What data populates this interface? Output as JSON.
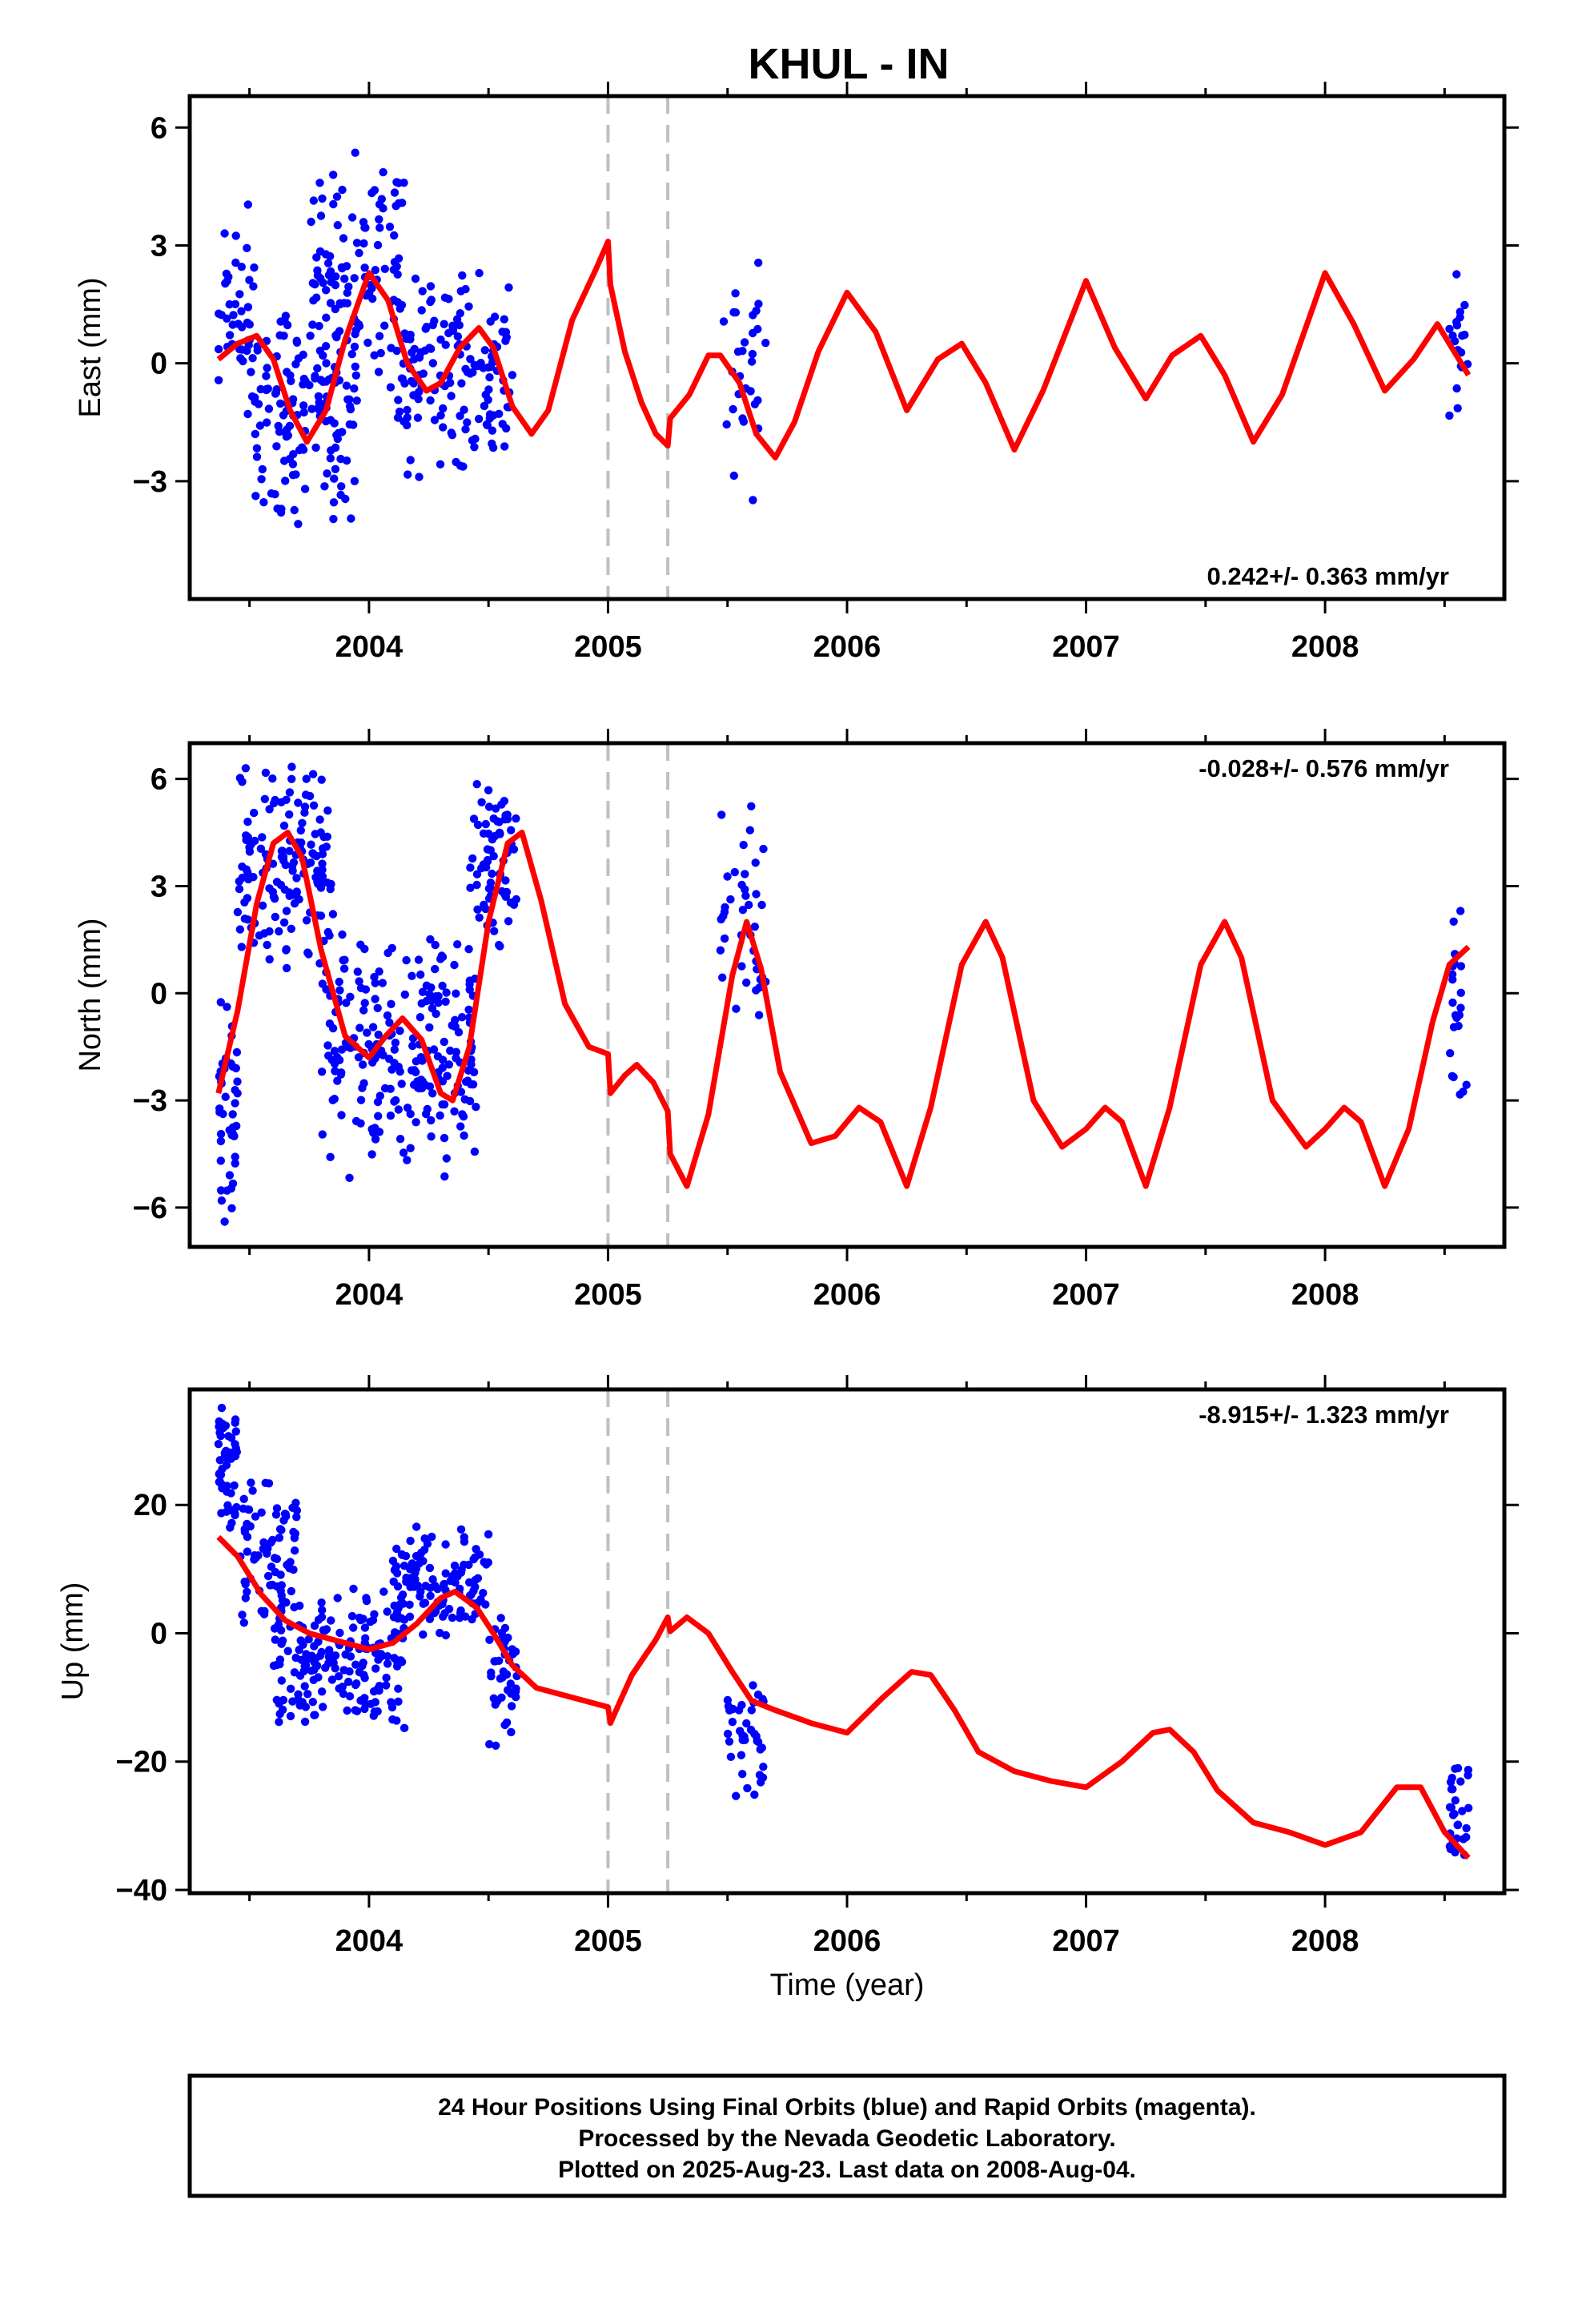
{
  "title": "KHUL - IN",
  "xlabel": "Time (year)",
  "footer": {
    "line1": "24 Hour Positions Using Final Orbits (blue) and Rapid Orbits (magenta).",
    "line2": "Processed by the Nevada Geodetic Laboratory.",
    "line3": "Plotted on 2025-Aug-23. Last data on 2008-Aug-04."
  },
  "colors": {
    "data_points": "#0000ff",
    "model_curve": "#ff0000",
    "break_lines": "#c0c0c0",
    "frame": "#000000"
  },
  "chart_data": [
    {
      "type": "scatter",
      "panel": "east",
      "ylabel": "East (mm)",
      "rate_text": "0.242+/- 0.363 mm/yr",
      "xlim": [
        2003.25,
        2008.75
      ],
      "ylim": [
        -6,
        6.8
      ],
      "yticks": [
        6,
        3,
        0,
        -3
      ],
      "xticks": [
        2004,
        2005,
        2006,
        2007,
        2008
      ],
      "break_lines_x": [
        2005.0,
        2005.25
      ],
      "model": {
        "x": [
          2003.37,
          2003.45,
          2003.53,
          2003.6,
          2003.67,
          2003.74,
          2003.82,
          2003.9,
          2004.0,
          2004.08,
          2004.16,
          2004.24,
          2004.3,
          2004.38,
          2004.46,
          2004.52,
          2004.6,
          2004.68,
          2004.75,
          2004.85,
          2004.95,
          2005.0,
          2005.01,
          2005.07,
          2005.14,
          2005.2,
          2005.25,
          2005.26,
          2005.34,
          2005.42,
          2005.47,
          2005.55,
          2005.62,
          2005.7,
          2005.78,
          2005.88,
          2006.0,
          2006.12,
          2006.25,
          2006.38,
          2006.48,
          2006.58,
          2006.7,
          2006.82,
          2007.0,
          2007.12,
          2007.25,
          2007.36,
          2007.48,
          2007.58,
          2007.7,
          2007.82,
          2008.0,
          2008.12,
          2008.25,
          2008.37,
          2008.47,
          2008.52,
          2008.6
        ],
        "y": [
          0.1,
          0.5,
          0.7,
          0.1,
          -1.2,
          -2.0,
          -1.2,
          0.6,
          2.3,
          1.6,
          0.0,
          -0.7,
          -0.5,
          0.4,
          0.9,
          0.4,
          -1.1,
          -1.8,
          -1.2,
          1.1,
          2.4,
          3.1,
          2.0,
          0.3,
          -1.0,
          -1.8,
          -2.1,
          -1.4,
          -0.8,
          0.2,
          0.2,
          -0.5,
          -1.8,
          -2.4,
          -1.5,
          0.3,
          1.8,
          0.8,
          -1.2,
          0.1,
          0.5,
          -0.5,
          -2.2,
          -0.7,
          2.1,
          0.4,
          -0.9,
          0.2,
          0.7,
          -0.3,
          -2.0,
          -0.8,
          2.3,
          1.0,
          -0.7,
          0.1,
          1.0,
          0.5,
          -0.3
        ]
      },
      "clusters": [
        {
          "x0": 2003.37,
          "x1": 2003.52,
          "n": 45,
          "y0": -2.5,
          "y1": 4.8
        },
        {
          "x0": 2003.52,
          "x1": 2003.95,
          "n": 150,
          "y0": -4.5,
          "y1": 2.2
        },
        {
          "x0": 2003.75,
          "x1": 2004.15,
          "n": 110,
          "y0": -0.8,
          "y1": 5.5
        },
        {
          "x0": 2004.12,
          "x1": 2004.6,
          "n": 150,
          "y0": -3.2,
          "y1": 2.8
        },
        {
          "x0": 2005.48,
          "x1": 2005.66,
          "n": 30,
          "y0": -4.0,
          "y1": 2.9
        },
        {
          "x0": 2008.52,
          "x1": 2008.6,
          "n": 20,
          "y0": -1.8,
          "y1": 3.0
        }
      ]
    },
    {
      "type": "scatter",
      "panel": "north",
      "ylabel": "North (mm)",
      "rate_text": "-0.028+/- 0.576 mm/yr",
      "xlim": [
        2003.25,
        2008.75
      ],
      "ylim": [
        -7.1,
        7.0
      ],
      "yticks": [
        6,
        3,
        0,
        -3,
        -6
      ],
      "xticks": [
        2004,
        2005,
        2006,
        2007,
        2008
      ],
      "break_lines_x": [
        2005.0,
        2005.25
      ],
      "model": {
        "x": [
          2003.37,
          2003.45,
          2003.53,
          2003.6,
          2003.66,
          2003.72,
          2003.8,
          2003.9,
          2004.0,
          2004.07,
          2004.14,
          2004.22,
          2004.3,
          2004.35,
          2004.42,
          2004.5,
          2004.58,
          2004.64,
          2004.72,
          2004.82,
          2004.92,
          2005.0,
          2005.01,
          2005.07,
          2005.12,
          2005.19,
          2005.25,
          2005.26,
          2005.33,
          2005.42,
          2005.52,
          2005.58,
          2005.64,
          2005.72,
          2005.85,
          2005.95,
          2006.05,
          2006.14,
          2006.25,
          2006.35,
          2006.48,
          2006.58,
          2006.65,
          2006.78,
          2006.9,
          2007.0,
          2007.08,
          2007.15,
          2007.25,
          2007.35,
          2007.48,
          2007.58,
          2007.65,
          2007.78,
          2007.92,
          2008.0,
          2008.08,
          2008.15,
          2008.25,
          2008.35,
          2008.45,
          2008.52,
          2008.6
        ],
        "y": [
          -2.8,
          -0.5,
          2.5,
          4.2,
          4.5,
          3.8,
          1.2,
          -1.2,
          -1.8,
          -1.2,
          -0.7,
          -1.3,
          -2.8,
          -3.0,
          -1.5,
          2.0,
          4.2,
          4.5,
          2.6,
          -0.3,
          -1.5,
          -1.7,
          -2.8,
          -2.3,
          -2.0,
          -2.5,
          -3.3,
          -4.5,
          -5.4,
          -3.4,
          0.5,
          2.0,
          0.7,
          -2.2,
          -4.2,
          -4.0,
          -3.2,
          -3.6,
          -5.4,
          -3.2,
          0.8,
          2.0,
          1.0,
          -3.0,
          -4.3,
          -3.8,
          -3.2,
          -3.6,
          -5.4,
          -3.2,
          0.8,
          2.0,
          1.0,
          -3.0,
          -4.3,
          -3.8,
          -3.2,
          -3.6,
          -5.4,
          -3.8,
          -0.8,
          0.8,
          1.3
        ]
      },
      "clusters": [
        {
          "x0": 2003.37,
          "x1": 2003.45,
          "n": 45,
          "y0": -6.8,
          "y1": 0.5
        },
        {
          "x0": 2003.45,
          "x1": 2003.85,
          "n": 150,
          "y0": 0.5,
          "y1": 6.8
        },
        {
          "x0": 2003.8,
          "x1": 2004.45,
          "n": 230,
          "y0": -5.4,
          "y1": 1.8
        },
        {
          "x0": 2004.42,
          "x1": 2004.62,
          "n": 70,
          "y0": 1.0,
          "y1": 6.6
        },
        {
          "x0": 2005.47,
          "x1": 2005.66,
          "n": 40,
          "y0": -1.2,
          "y1": 5.8
        },
        {
          "x0": 2008.52,
          "x1": 2008.6,
          "n": 22,
          "y0": -4.2,
          "y1": 2.9
        }
      ]
    },
    {
      "type": "scatter",
      "panel": "up",
      "ylabel": "Up (mm)",
      "rate_text": "-8.915+/- 1.323 mm/yr",
      "xlim": [
        2003.25,
        2008.75
      ],
      "ylim": [
        -40.5,
        38
      ],
      "yticks": [
        20,
        0,
        -20,
        -40
      ],
      "xticks": [
        2004,
        2005,
        2006,
        2007,
        2008
      ],
      "break_lines_x": [
        2005.0,
        2005.25
      ],
      "model": {
        "x": [
          2003.37,
          2003.45,
          2003.55,
          2003.65,
          2003.75,
          2003.85,
          2004.0,
          2004.1,
          2004.2,
          2004.3,
          2004.36,
          2004.45,
          2004.52,
          2004.6,
          2004.7,
          2004.85,
          2005.0,
          2005.01,
          2005.1,
          2005.2,
          2005.25,
          2005.26,
          2005.33,
          2005.42,
          2005.52,
          2005.6,
          2005.7,
          2005.85,
          2006.0,
          2006.15,
          2006.27,
          2006.35,
          2006.45,
          2006.55,
          2006.7,
          2006.85,
          2007.0,
          2007.15,
          2007.28,
          2007.35,
          2007.45,
          2007.55,
          2007.7,
          2007.85,
          2008.0,
          2008.15,
          2008.3,
          2008.4,
          2008.5,
          2008.6
        ],
        "y": [
          15,
          12,
          6,
          2,
          0,
          -1,
          -2.5,
          -1.5,
          1.5,
          5.5,
          6.5,
          4,
          0,
          -5,
          -8.5,
          -10,
          -11.5,
          -14,
          -6.5,
          -1,
          2.5,
          0.3,
          2.5,
          0,
          -6,
          -10.5,
          -12,
          -14,
          -15.5,
          -10,
          -6,
          -6.5,
          -12,
          -18.5,
          -21.5,
          -23,
          -24,
          -20,
          -15.5,
          -15,
          -18.5,
          -24.5,
          -29.5,
          -31,
          -33,
          -31,
          -24,
          -24,
          -31,
          -35
        ]
      },
      "clusters": [
        {
          "x0": 2003.37,
          "x1": 2003.45,
          "n": 50,
          "y0": 14,
          "y1": 37
        },
        {
          "x0": 2003.45,
          "x1": 2003.7,
          "n": 80,
          "y0": 0,
          "y1": 25
        },
        {
          "x0": 2003.6,
          "x1": 2004.15,
          "n": 180,
          "y0": -16,
          "y1": 8
        },
        {
          "x0": 2004.1,
          "x1": 2004.5,
          "n": 120,
          "y0": -2,
          "y1": 18
        },
        {
          "x0": 2004.5,
          "x1": 2004.62,
          "n": 45,
          "y0": -20,
          "y1": 6
        },
        {
          "x0": 2005.5,
          "x1": 2005.66,
          "n": 40,
          "y0": -28,
          "y1": -4
        },
        {
          "x0": 2008.52,
          "x1": 2008.6,
          "n": 30,
          "y0": -38,
          "y1": -19
        }
      ]
    }
  ]
}
